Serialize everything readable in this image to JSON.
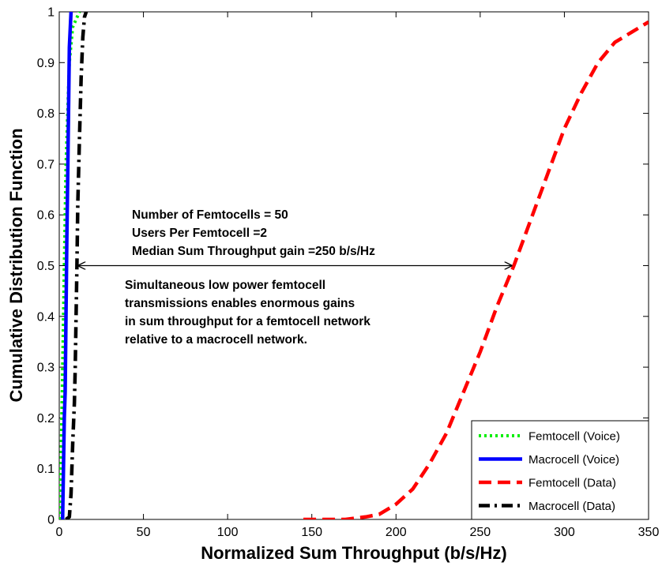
{
  "chart_data": {
    "type": "line",
    "xlabel": "Normalized Sum Throughput (b/s/Hz)",
    "ylabel": "Cumulative Distribution Function",
    "xlim": [
      0,
      350
    ],
    "ylim": [
      0,
      1
    ],
    "xticks": [
      0,
      50,
      100,
      150,
      200,
      250,
      300,
      350
    ],
    "yticks": [
      0,
      0.1,
      0.2,
      0.3,
      0.4,
      0.5,
      0.6,
      0.7,
      0.8,
      0.9,
      1
    ],
    "ytick_labels": [
      "0",
      "0.1",
      "0.2",
      "0.3",
      "0.4",
      "0.5",
      "0.6",
      "0.7",
      "0.8",
      "0.9",
      "1"
    ],
    "grid": false,
    "legend_position": "bottom-right",
    "series": [
      {
        "name": "Femtocell (Voice)",
        "color": "#00ee00",
        "style": "dotted",
        "points": [
          [
            0,
            0
          ],
          [
            0.5,
            0.05
          ],
          [
            1,
            0.1
          ],
          [
            1.5,
            0.2
          ],
          [
            2,
            0.3
          ],
          [
            3,
            0.5
          ],
          [
            4,
            0.7
          ],
          [
            5,
            0.8
          ],
          [
            6,
            0.9
          ],
          [
            8,
            0.97
          ],
          [
            12,
            1.0
          ]
        ]
      },
      {
        "name": "Macrocell (Voice)",
        "color": "#0000ff",
        "style": "solid",
        "points": [
          [
            2,
            0
          ],
          [
            2.5,
            0.1
          ],
          [
            3,
            0.2
          ],
          [
            3.5,
            0.25
          ],
          [
            4,
            0.4
          ],
          [
            4.5,
            0.55
          ],
          [
            5,
            0.67
          ],
          [
            5.5,
            0.8
          ],
          [
            6,
            0.93
          ],
          [
            7,
            1.0
          ]
        ]
      },
      {
        "name": "Femtocell (Data)",
        "color": "#ff0000",
        "style": "dashed",
        "points": [
          [
            145,
            0
          ],
          [
            170,
            0
          ],
          [
            182,
            0.005
          ],
          [
            190,
            0.01
          ],
          [
            200,
            0.03
          ],
          [
            210,
            0.06
          ],
          [
            220,
            0.11
          ],
          [
            230,
            0.17
          ],
          [
            240,
            0.25
          ],
          [
            250,
            0.33
          ],
          [
            260,
            0.42
          ],
          [
            270,
            0.5
          ],
          [
            280,
            0.59
          ],
          [
            290,
            0.68
          ],
          [
            300,
            0.77
          ],
          [
            310,
            0.84
          ],
          [
            320,
            0.9
          ],
          [
            330,
            0.94
          ],
          [
            340,
            0.96
          ],
          [
            350,
            0.98
          ]
        ]
      },
      {
        "name": "Macrocell (Data)",
        "color": "#000000",
        "style": "dashdot",
        "points": [
          [
            4,
            0
          ],
          [
            6,
            0.005
          ],
          [
            7,
            0.05
          ],
          [
            8,
            0.15
          ],
          [
            9,
            0.23
          ],
          [
            9.5,
            0.3
          ],
          [
            10,
            0.4
          ],
          [
            10.5,
            0.5
          ],
          [
            11,
            0.62
          ],
          [
            12,
            0.75
          ],
          [
            13,
            0.87
          ],
          [
            14,
            0.95
          ],
          [
            15,
            0.99
          ],
          [
            16,
            1.0
          ]
        ]
      }
    ],
    "annotations": {
      "lines": [
        "Number of Femtocells = 50",
        "Users Per Femtocell =2",
        "Median Sum Throughput gain =250 b/s/Hz",
        "Simultaneous low power femtocell",
        "transmissions enables enormous gains",
        "in sum throughput for a femtocell network",
        "relative to a macrocell network."
      ],
      "arrow_from_x": 10,
      "arrow_to_x": 270,
      "arrow_y": 0.5
    }
  }
}
